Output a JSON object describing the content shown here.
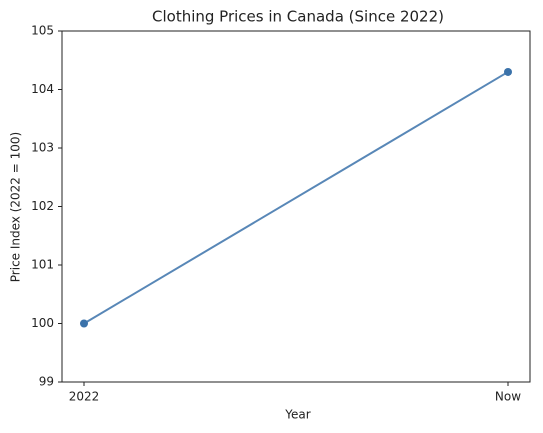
{
  "chart_data": {
    "type": "line",
    "title": "Clothing Prices in Canada (Since 2022)",
    "x_label": "Year",
    "y_label": "Price Index (2022 = 100)",
    "categories": [
      "2022",
      "Now"
    ],
    "values": [
      100,
      104.3
    ],
    "color": "#3b72aa",
    "ylim": [
      99,
      105
    ],
    "yticks": [
      99,
      100,
      101,
      102,
      103,
      104,
      105
    ],
    "grid": false
  }
}
